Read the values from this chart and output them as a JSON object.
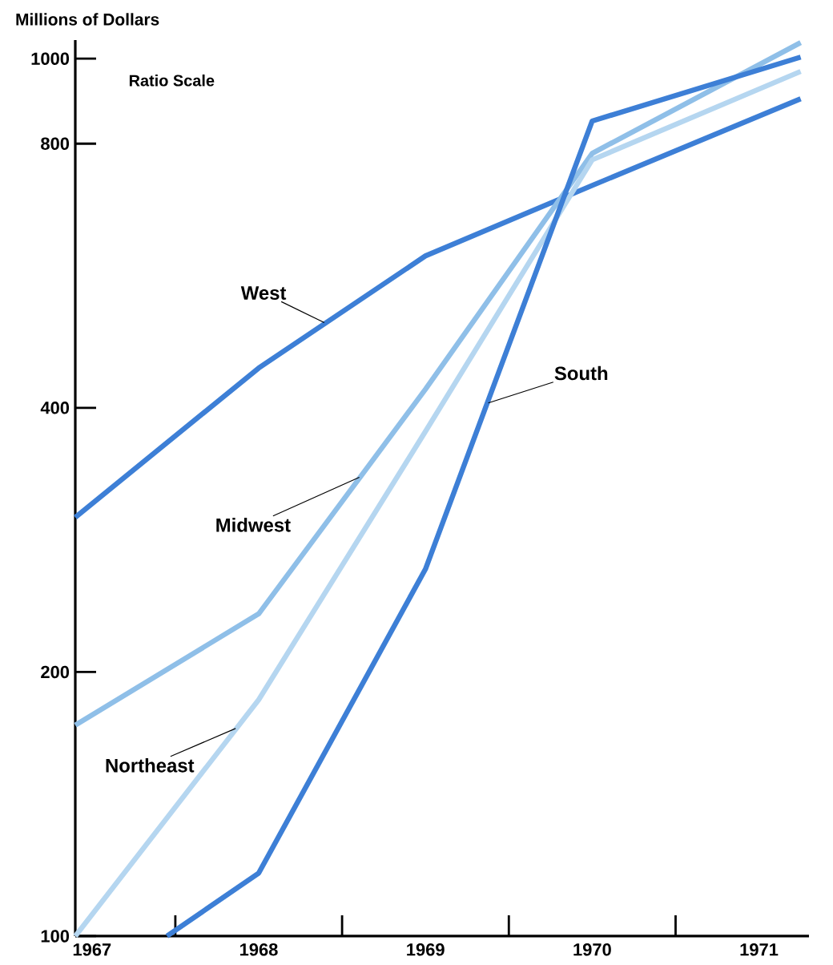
{
  "chart_data": {
    "type": "line",
    "ylabel": "Millions of Dollars",
    "annotations": [
      "Ratio Scale"
    ],
    "log": "y",
    "x": [
      1966.9,
      1968,
      1969,
      1970,
      1971.25
    ],
    "xlim": [
      1966.9,
      1971.3
    ],
    "xticks": [
      1967,
      {
        "value": 1967.5,
        "label": null
      },
      1968,
      {
        "value": 1968.5,
        "label": null
      },
      1969,
      {
        "value": 1969.5,
        "label": null
      },
      1970,
      {
        "value": 1970.5,
        "label": null
      },
      1971
    ],
    "ylim": [
      100,
      1050
    ],
    "yticks": [
      100,
      200,
      400,
      800,
      1000
    ],
    "series": [
      {
        "name": "West",
        "color": "#3d7fd6",
        "values": [
          300,
          444,
          596,
          717,
          900
        ]
      },
      {
        "name": "Midwest",
        "color": "#8fbfe8",
        "values": [
          174,
          233,
          420,
          780,
          1043
        ]
      },
      {
        "name": "Northeast",
        "color": "#b5d6f0",
        "values": [
          100,
          186,
          376,
          767,
          967
        ]
      },
      {
        "name": "South",
        "color": "#3d7fd6",
        "x": [
          1967.45,
          1968,
          1969,
          1970,
          1971.25
        ],
        "values": [
          100,
          118,
          262,
          849,
          1004
        ]
      }
    ]
  }
}
